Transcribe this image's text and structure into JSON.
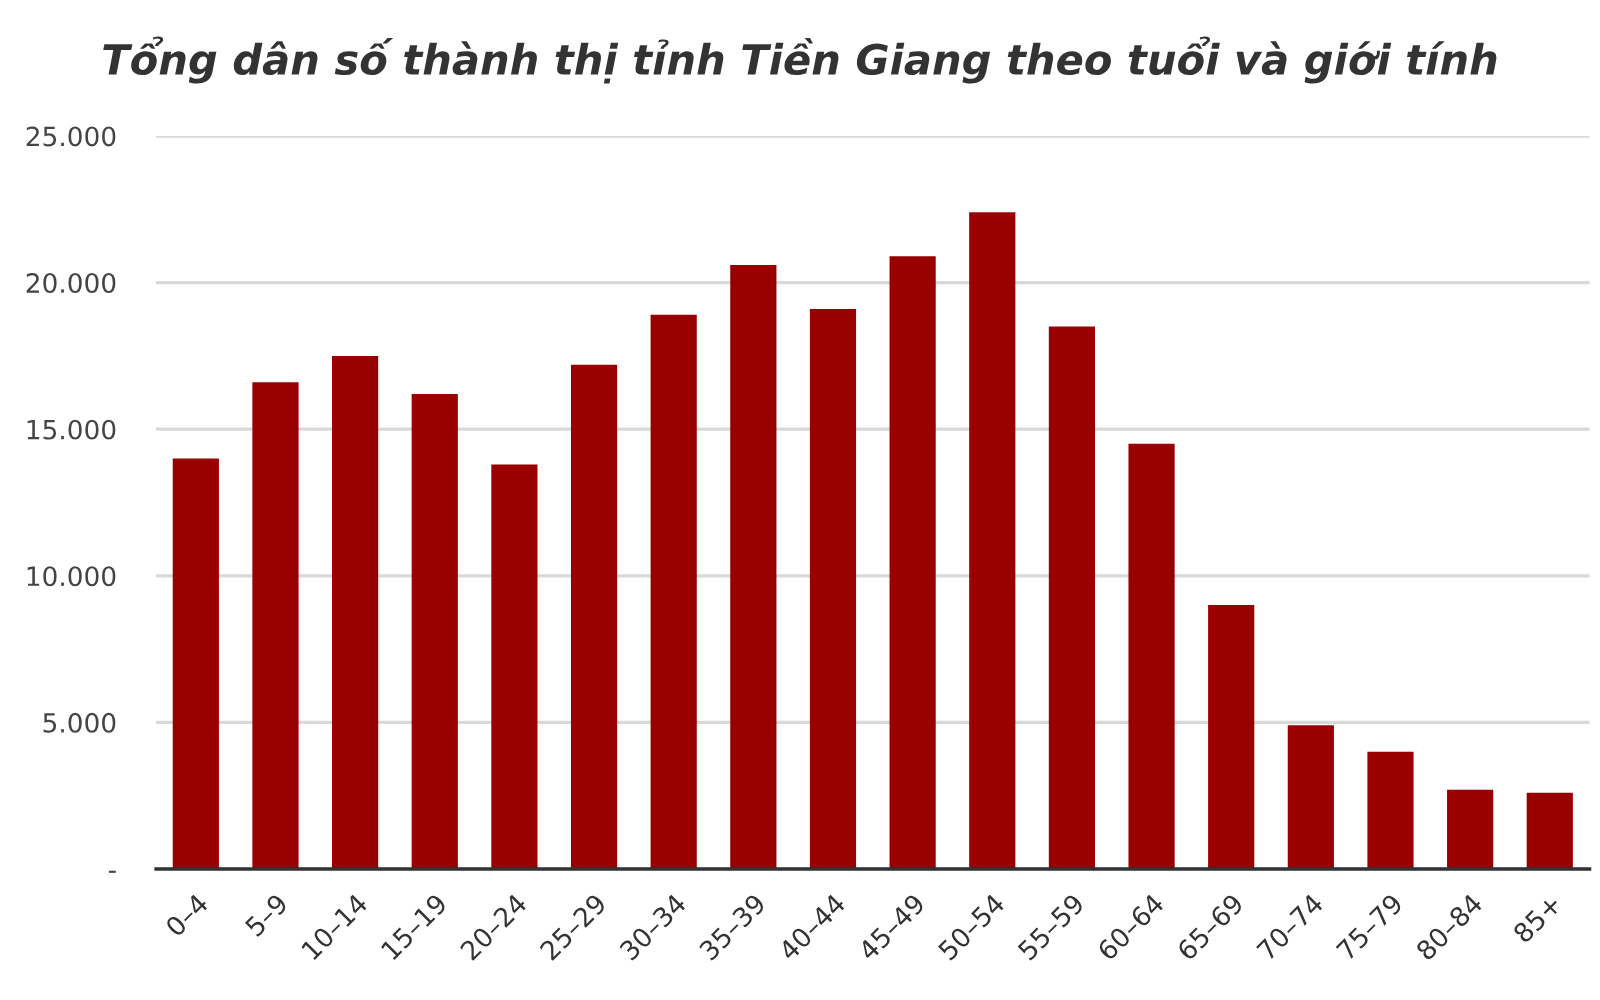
{
  "chart_data": {
    "type": "bar",
    "title": "Tổng dân số thành thị tỉnh Tiền Giang theo tuổi và giới tính",
    "categories": [
      "0–4",
      "5–9",
      "10–14",
      "15–19",
      "20–24",
      "25–29",
      "30–34",
      "35–39",
      "40–44",
      "45–49",
      "50–54",
      "55–59",
      "60–64",
      "65–69",
      "70–74",
      "75–79",
      "80–84",
      "85+"
    ],
    "values": [
      14000,
      16600,
      17500,
      16200,
      13800,
      17200,
      18900,
      20600,
      19100,
      20900,
      22400,
      18500,
      14500,
      9000,
      4900,
      4000,
      2700,
      2600
    ],
    "color": "#990000",
    "ylim": [
      0,
      25000
    ],
    "yticks": [
      {
        "value": 0,
        "label": "-"
      },
      {
        "value": 5000,
        "label": "5.000"
      },
      {
        "value": 10000,
        "label": "10.000"
      },
      {
        "value": 15000,
        "label": "15.000"
      },
      {
        "value": 20000,
        "label": "20.000"
      },
      {
        "value": 25000,
        "label": "25.000"
      }
    ],
    "grid": "y"
  }
}
